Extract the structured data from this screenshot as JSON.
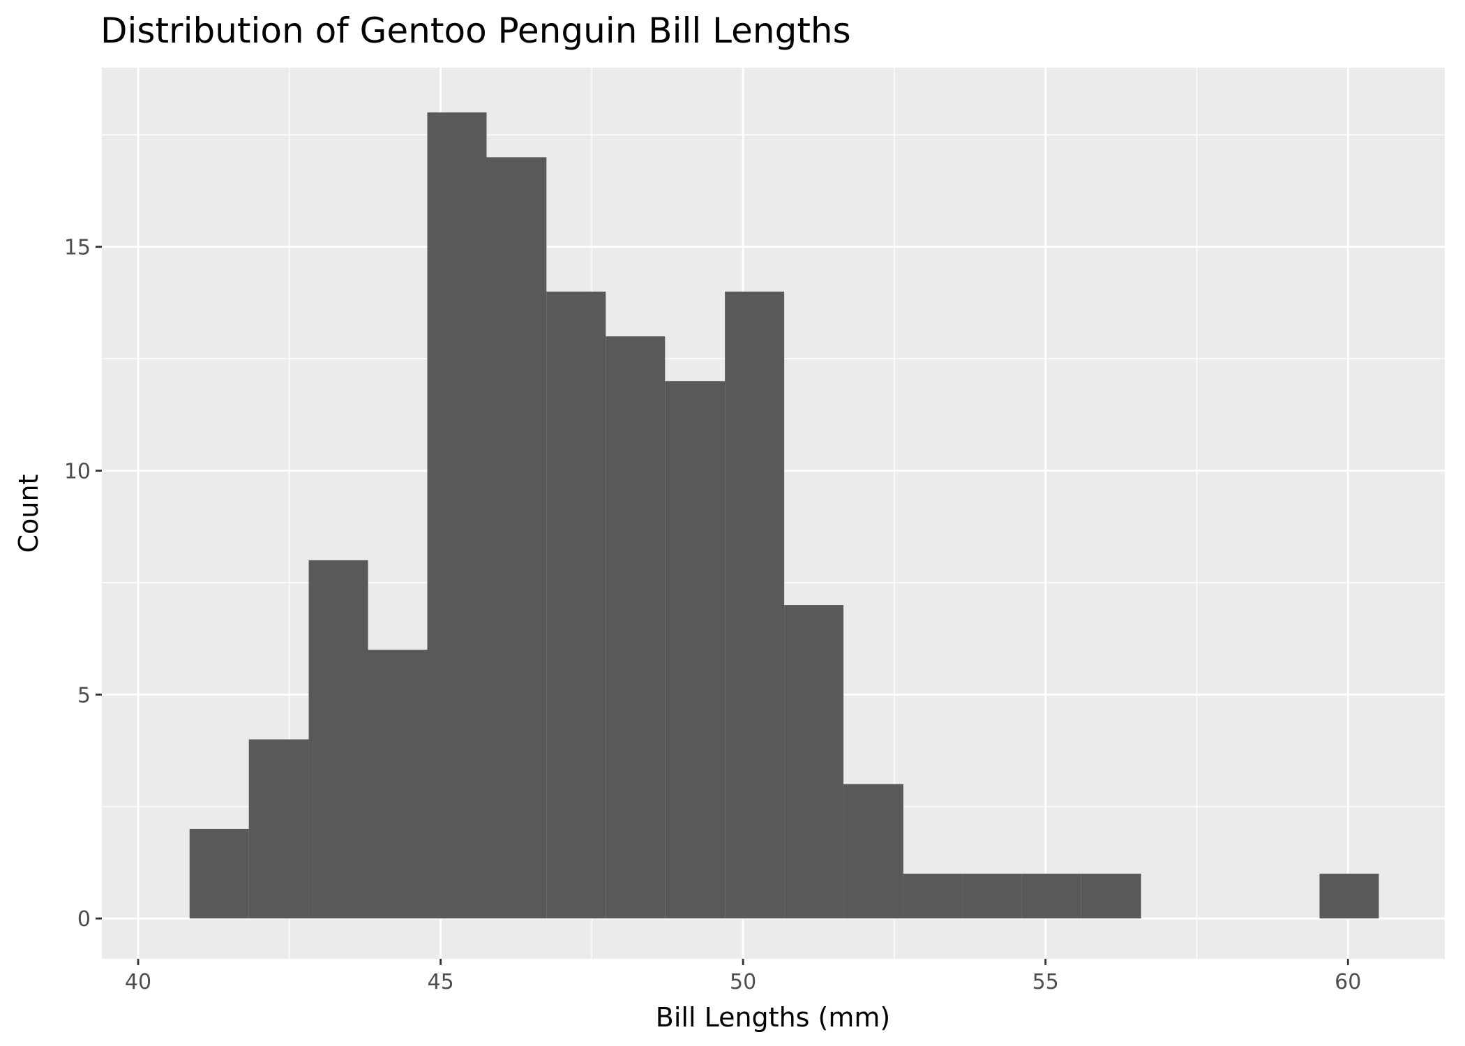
{
  "chart_data": {
    "type": "bar",
    "subtype": "histogram",
    "title": "Distribution of Gentoo Penguin Bill Lengths",
    "xlabel": "Bill Lengths (mm)",
    "ylabel": "Count",
    "xlim": [
      39.4,
      61.6
    ],
    "ylim": [
      -0.9,
      19.0
    ],
    "x_ticks": [
      40,
      45,
      50,
      55,
      60
    ],
    "y_ticks": [
      0,
      5,
      10,
      15
    ],
    "bin_width": 0.983,
    "bins": [
      {
        "x0": 40.85,
        "x1": 41.83,
        "count": 2
      },
      {
        "x0": 41.83,
        "x1": 42.82,
        "count": 4
      },
      {
        "x0": 42.82,
        "x1": 43.8,
        "count": 8
      },
      {
        "x0": 43.8,
        "x1": 44.78,
        "count": 6
      },
      {
        "x0": 44.78,
        "x1": 45.76,
        "count": 18
      },
      {
        "x0": 45.76,
        "x1": 46.75,
        "count": 17
      },
      {
        "x0": 46.75,
        "x1": 47.73,
        "count": 14
      },
      {
        "x0": 47.73,
        "x1": 48.71,
        "count": 13
      },
      {
        "x0": 48.71,
        "x1": 49.7,
        "count": 12
      },
      {
        "x0": 49.7,
        "x1": 50.68,
        "count": 14
      },
      {
        "x0": 50.68,
        "x1": 51.66,
        "count": 7
      },
      {
        "x0": 51.66,
        "x1": 52.65,
        "count": 3
      },
      {
        "x0": 52.65,
        "x1": 53.63,
        "count": 1
      },
      {
        "x0": 53.63,
        "x1": 54.61,
        "count": 1
      },
      {
        "x0": 54.61,
        "x1": 55.59,
        "count": 1
      },
      {
        "x0": 55.59,
        "x1": 56.58,
        "count": 1
      },
      {
        "x0": 59.53,
        "x1": 60.51,
        "count": 1
      }
    ],
    "grid": true,
    "legend": "none",
    "colors": {
      "panel_background": "#ebebeb",
      "grid_major": "#ffffff",
      "bar_fill": "#595959",
      "tick_text": "#4d4d4d",
      "tick_mark": "#333333"
    }
  }
}
